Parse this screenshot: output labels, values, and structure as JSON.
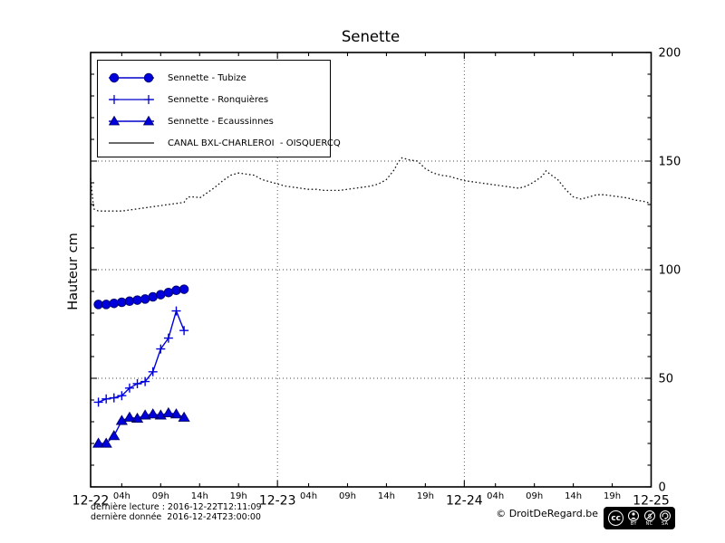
{
  "chart": {
    "title": "Senette",
    "ylabel": "Hauteur cm"
  },
  "footer": {
    "line1": "dernière lecture : 2016-12-22T12:11:09",
    "line2": "dernière donnée  2016-12-24T23:00:00",
    "copyright": "© DroitDeRegard.be",
    "cc": {
      "logo": "cc",
      "labels": [
        "BY",
        "NC",
        "SA"
      ]
    }
  },
  "colors": {
    "series_blue": "#0000dd",
    "line_blue": "#0000cc",
    "canal_black": "#111111",
    "grid": "#444444"
  },
  "chart_data": {
    "type": "line",
    "title": "Senette",
    "ylabel": "Hauteur cm",
    "ylim": [
      0,
      200
    ],
    "xlim_hours": [
      0,
      72
    ],
    "x_unit": "hours since 2016-12-22 00:00",
    "grid": {
      "y_values": [
        50,
        100,
        150
      ],
      "x_hours": [
        24,
        48
      ]
    },
    "y_axis": {
      "major_ticks": [
        0,
        50,
        100,
        150,
        200
      ],
      "minor_step": 10,
      "labels_side": "right"
    },
    "x_axis": {
      "days": [
        {
          "t": 0,
          "label": "12-22"
        },
        {
          "t": 24,
          "label": "12-23"
        },
        {
          "t": 48,
          "label": "12-24"
        },
        {
          "t": 72,
          "label": "12-25"
        }
      ],
      "hour_ticks": [
        {
          "h": 4,
          "label": "04h"
        },
        {
          "h": 9,
          "label": "09h"
        },
        {
          "h": 14,
          "label": "14h"
        },
        {
          "h": 19,
          "label": "19h"
        }
      ]
    },
    "legend_position": "upper-left",
    "series": [
      {
        "name": "Sennette - Tubize",
        "marker": "circle",
        "color": "#0000dd",
        "x_hours": [
          1,
          2,
          3,
          4,
          5,
          6,
          7,
          8,
          9,
          10,
          11,
          12
        ],
        "values": [
          84,
          84,
          84.5,
          85,
          85.5,
          86,
          86.5,
          87.5,
          88.5,
          89.5,
          90.5,
          91
        ]
      },
      {
        "name": "Sennette - Ronquières",
        "marker": "plus",
        "color": "#0000dd",
        "x_hours": [
          1,
          2,
          3,
          4,
          5,
          6,
          7,
          8,
          9,
          10,
          11,
          12
        ],
        "values": [
          39,
          40.5,
          41,
          42,
          45.5,
          47.5,
          48.5,
          53,
          63.5,
          68.5,
          81,
          72
        ]
      },
      {
        "name": "Sennette - Ecaussinnes",
        "marker": "triangle",
        "color": "#0000dd",
        "x_hours": [
          1,
          2,
          3,
          4,
          5,
          6,
          7,
          8,
          9,
          10,
          11,
          12
        ],
        "values": [
          20,
          20,
          23.5,
          30.5,
          32,
          31.5,
          33,
          33.5,
          33,
          34,
          33.5,
          32
        ]
      },
      {
        "name": "CANAL BXL-CHARLEROI  - OISQUERCQ",
        "marker": "none",
        "linestyle": "dotted",
        "color": "#111111",
        "points": [
          [
            0,
            142
          ],
          [
            0.4,
            128
          ],
          [
            1,
            127
          ],
          [
            2,
            127
          ],
          [
            3,
            127
          ],
          [
            4,
            127
          ],
          [
            5,
            127.5
          ],
          [
            6,
            128
          ],
          [
            7,
            128.5
          ],
          [
            8,
            129
          ],
          [
            9,
            129.5
          ],
          [
            10,
            130
          ],
          [
            11,
            130.5
          ],
          [
            12,
            131
          ],
          [
            12.5,
            133.5
          ],
          [
            13.5,
            133.5
          ],
          [
            14,
            133
          ],
          [
            15,
            135.5
          ],
          [
            16,
            138
          ],
          [
            17,
            141
          ],
          [
            18,
            143.5
          ],
          [
            19,
            144.5
          ],
          [
            20,
            144
          ],
          [
            21,
            143.5
          ],
          [
            22,
            141.5
          ],
          [
            23,
            140.5
          ],
          [
            24,
            139.5
          ],
          [
            25,
            138.5
          ],
          [
            26,
            138
          ],
          [
            27,
            137.5
          ],
          [
            28,
            137
          ],
          [
            29,
            137
          ],
          [
            30,
            136.5
          ],
          [
            31,
            136.5
          ],
          [
            32,
            136.5
          ],
          [
            33,
            137
          ],
          [
            34,
            137.5
          ],
          [
            35,
            138
          ],
          [
            36,
            138.5
          ],
          [
            37,
            139.5
          ],
          [
            38,
            141.5
          ],
          [
            39,
            146
          ],
          [
            39.5,
            149.5
          ],
          [
            40,
            151.5
          ],
          [
            41,
            150.5
          ],
          [
            42,
            150
          ],
          [
            43,
            146.5
          ],
          [
            44,
            144.5
          ],
          [
            45,
            143.5
          ],
          [
            46,
            143
          ],
          [
            47,
            142
          ],
          [
            48,
            141
          ],
          [
            49,
            140.5
          ],
          [
            50,
            140
          ],
          [
            51,
            139.5
          ],
          [
            52,
            139
          ],
          [
            53,
            138.5
          ],
          [
            54,
            138
          ],
          [
            55,
            137.5
          ],
          [
            56,
            138.5
          ],
          [
            57,
            140.5
          ],
          [
            58,
            143
          ],
          [
            58.5,
            145.5
          ],
          [
            59,
            144
          ],
          [
            60,
            141.5
          ],
          [
            61,
            137
          ],
          [
            62,
            133.5
          ],
          [
            63,
            132.5
          ],
          [
            64,
            133.5
          ],
          [
            65,
            134.5
          ],
          [
            66,
            134.5
          ],
          [
            67,
            134
          ],
          [
            68,
            133.5
          ],
          [
            69,
            133
          ],
          [
            70,
            132
          ],
          [
            71,
            131.5
          ],
          [
            72,
            130.5
          ]
        ]
      }
    ]
  }
}
